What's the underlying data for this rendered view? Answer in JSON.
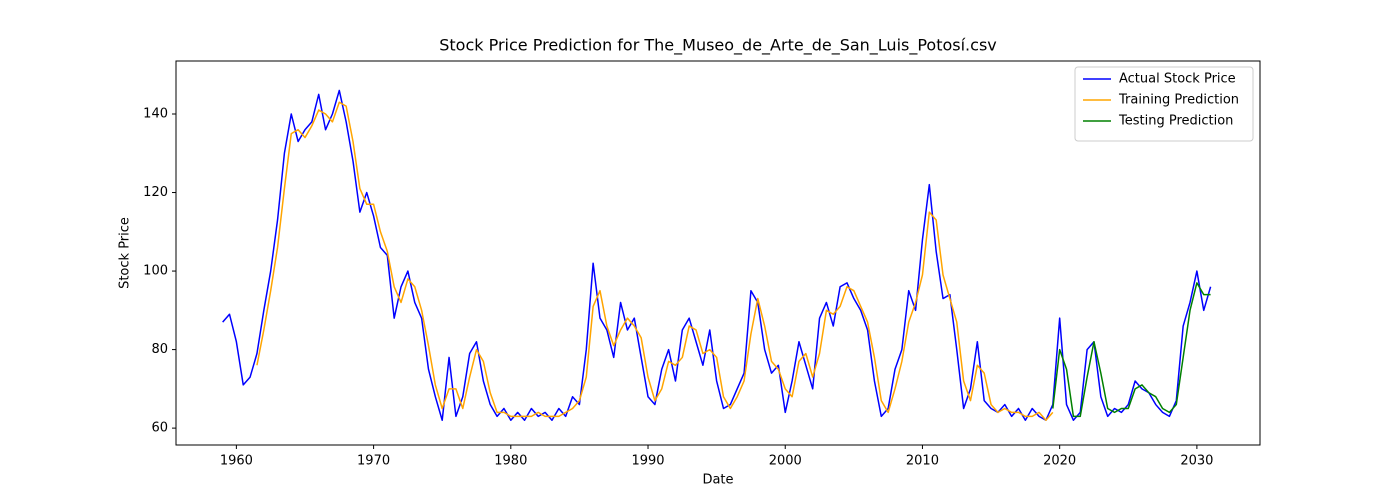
{
  "chart_data": {
    "type": "line",
    "title": "Stock Price Prediction for The_Museo_de_Arte_de_San_Luis_Potosí.csv",
    "x_label": "Date",
    "y_label": "Stock Price",
    "x": [
      1959,
      1959.5,
      1960,
      1960.5,
      1961,
      1961.5,
      1962,
      1962.5,
      1963,
      1963.5,
      1964,
      1964.5,
      1965,
      1965.5,
      1966,
      1966.5,
      1967,
      1967.5,
      1968,
      1968.5,
      1969,
      1969.5,
      1970,
      1970.5,
      1971,
      1971.5,
      1972,
      1972.5,
      1973,
      1973.5,
      1974,
      1974.5,
      1975,
      1975.5,
      1976,
      1976.5,
      1977,
      1977.5,
      1978,
      1978.5,
      1979,
      1979.5,
      1980,
      1980.5,
      1981,
      1981.5,
      1982,
      1982.5,
      1983,
      1983.5,
      1984,
      1984.5,
      1985,
      1985.5,
      1986,
      1986.5,
      1987,
      1987.5,
      1988,
      1988.5,
      1989,
      1989.5,
      1990,
      1990.5,
      1991,
      1991.5,
      1992,
      1992.5,
      1993,
      1993.5,
      1994,
      1994.5,
      1995,
      1995.5,
      1996,
      1996.5,
      1997,
      1997.5,
      1998,
      1998.5,
      1999,
      1999.5,
      2000,
      2000.5,
      2001,
      2001.5,
      2002,
      2002.5,
      2003,
      2003.5,
      2004,
      2004.5,
      2005,
      2005.5,
      2006,
      2006.5,
      2007,
      2007.5,
      2008,
      2008.5,
      2009,
      2009.5,
      2010,
      2010.5,
      2011,
      2011.5,
      2012,
      2012.5,
      2013,
      2013.5,
      2014,
      2014.5,
      2015,
      2015.5,
      2016,
      2016.5,
      2017,
      2017.5,
      2018,
      2018.5,
      2019,
      2019.5,
      2020,
      2020.5,
      2021,
      2021.5,
      2022,
      2022.5,
      2023,
      2023.5,
      2024,
      2024.5,
      2025,
      2025.5,
      2026,
      2026.5,
      2027,
      2027.5,
      2028,
      2028.5,
      2029,
      2029.5,
      2030,
      2030.5,
      2031
    ],
    "series": [
      {
        "name": "Actual Stock Price",
        "color": "#0000ff",
        "values": [
          87,
          89,
          82,
          71,
          73,
          79,
          90,
          100,
          113,
          130,
          140,
          133,
          136,
          138,
          145,
          136,
          140,
          146,
          138,
          128,
          115,
          120,
          114,
          106,
          104,
          88,
          96,
          100,
          92,
          88,
          75,
          68,
          62,
          78,
          63,
          68,
          79,
          82,
          72,
          66,
          63,
          65,
          62,
          64,
          62,
          65,
          63,
          64,
          62,
          65,
          63,
          68,
          66,
          80,
          102,
          88,
          85,
          78,
          92,
          85,
          88,
          78,
          68,
          66,
          75,
          80,
          72,
          85,
          88,
          82,
          76,
          85,
          72,
          65,
          66,
          70,
          74,
          95,
          92,
          80,
          74,
          76,
          64,
          72,
          82,
          76,
          70,
          88,
          92,
          86,
          96,
          97,
          93,
          90,
          85,
          72,
          63,
          65,
          75,
          80,
          95,
          90,
          108,
          122,
          105,
          93,
          94,
          80,
          65,
          70,
          82,
          67,
          65,
          64,
          66,
          63,
          65,
          62,
          65,
          63,
          62,
          66,
          88,
          66,
          62,
          64,
          80,
          82,
          68,
          63,
          65,
          64,
          66,
          72,
          70,
          69,
          66,
          64,
          63,
          67,
          86,
          92,
          100,
          90,
          96
        ]
      },
      {
        "name": "Training Prediction",
        "color": "#ffa500",
        "values": [
          null,
          null,
          null,
          null,
          null,
          76,
          85,
          95,
          106,
          121,
          135,
          136,
          134,
          137,
          141,
          140,
          138,
          143,
          142,
          133,
          121,
          117,
          117,
          110,
          105,
          96,
          92,
          98,
          96,
          90,
          81,
          71,
          65,
          70,
          70,
          65,
          73,
          80,
          77,
          69,
          64,
          64,
          63,
          63,
          63,
          63,
          64,
          63,
          63,
          63,
          64,
          65,
          67,
          73,
          91,
          95,
          86,
          81,
          85,
          88,
          86,
          83,
          73,
          67,
          70,
          77,
          76,
          78,
          86,
          85,
          79,
          80,
          78,
          68,
          65,
          68,
          72,
          84,
          93,
          86,
          77,
          75,
          70,
          68,
          77,
          79,
          73,
          79,
          90,
          89,
          91,
          96,
          95,
          91,
          87,
          78,
          67,
          64,
          70,
          77,
          87,
          92,
          99,
          115,
          113,
          99,
          93,
          87,
          72,
          67,
          76,
          74,
          66,
          64,
          65,
          64,
          64,
          63,
          63,
          64,
          62,
          64,
          null,
          null,
          null,
          null,
          null,
          null,
          null,
          null,
          null,
          null,
          null,
          null,
          null,
          null,
          null,
          null,
          null,
          null,
          null,
          null,
          null,
          null,
          null
        ]
      },
      {
        "name": "Testing Prediction",
        "color": "#008000",
        "values": [
          null,
          null,
          null,
          null,
          null,
          null,
          null,
          null,
          null,
          null,
          null,
          null,
          null,
          null,
          null,
          null,
          null,
          null,
          null,
          null,
          null,
          null,
          null,
          null,
          null,
          null,
          null,
          null,
          null,
          null,
          null,
          null,
          null,
          null,
          null,
          null,
          null,
          null,
          null,
          null,
          null,
          null,
          null,
          null,
          null,
          null,
          null,
          null,
          null,
          null,
          null,
          null,
          null,
          null,
          null,
          null,
          null,
          null,
          null,
          null,
          null,
          null,
          null,
          null,
          null,
          null,
          null,
          null,
          null,
          null,
          null,
          null,
          null,
          null,
          null,
          null,
          null,
          null,
          null,
          null,
          null,
          null,
          null,
          null,
          null,
          null,
          null,
          null,
          null,
          null,
          null,
          null,
          null,
          null,
          null,
          null,
          null,
          null,
          null,
          null,
          null,
          null,
          null,
          null,
          null,
          null,
          null,
          null,
          null,
          null,
          null,
          null,
          null,
          null,
          null,
          null,
          null,
          null,
          null,
          null,
          null,
          65,
          80,
          75,
          63,
          63,
          73,
          82,
          74,
          65,
          64,
          65,
          65,
          70,
          71,
          69,
          68,
          65,
          64,
          66,
          78,
          90,
          97,
          94,
          94
        ]
      }
    ],
    "xlim": [
      1955.6,
      2034.6
    ],
    "ylim": [
      55.7,
      153.5
    ],
    "xticks": [
      1960,
      1970,
      1980,
      1990,
      2000,
      2010,
      2020,
      2030
    ],
    "yticks": [
      60,
      80,
      100,
      120,
      140
    ],
    "legend": "upper right"
  }
}
